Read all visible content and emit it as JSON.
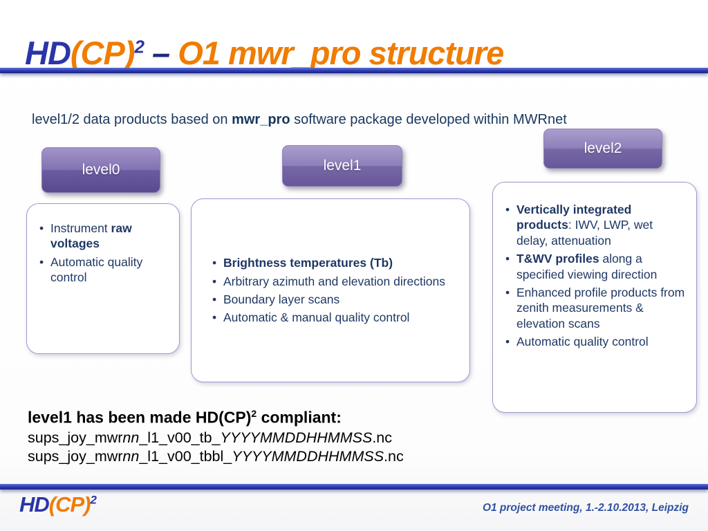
{
  "title": {
    "hd": "HD",
    "cp": "(CP)",
    "sup": "2",
    "dash": " – ",
    "rest": "O1 mwr_pro structure"
  },
  "subtitle": {
    "pre": "level1/2 data products based on ",
    "bold": "mwr_pro",
    "post": " software package developed within MWRnet"
  },
  "levels": {
    "level0": "level0",
    "level1": "level1",
    "level2": "level2"
  },
  "box_level0": {
    "items": [
      {
        "pre": "Instrument ",
        "bold": "raw voltages"
      },
      {
        "text": "Automatic quality control"
      }
    ]
  },
  "box_level1": {
    "items": [
      {
        "bold": "Brightness temperatures (Tb)"
      },
      {
        "text": "Arbitrary azimuth and elevation directions"
      },
      {
        "text": "Boundary layer scans"
      },
      {
        "text": "Automatic & manual quality control"
      }
    ]
  },
  "box_level2": {
    "items": [
      {
        "bold": "Vertically integrated products",
        "post": ": IWV, LWP, wet delay, attenuation"
      },
      {
        "bold": "T&WV profiles",
        "post": " along a specified viewing direction"
      },
      {
        "text": "Enhanced profile products from zenith measurements & elevation scans"
      },
      {
        "text": "Automatic quality control"
      }
    ]
  },
  "compliance": {
    "heading_pre": "level1 has been made HD(CP)",
    "heading_sup": "2",
    "heading_post": " compliant:",
    "file1": {
      "p1": "sups_joy_mwr",
      "i1": "nn",
      "p2": "_l1_v00_tb_",
      "i2": "YYYYMMDDHHMMSS",
      "p3": ".nc"
    },
    "file2": {
      "p1": "sups_joy_mwr",
      "i1": "nn",
      "p2": "_l1_v00_tbbl_",
      "i2": "YYYYMMDDHHMMSS",
      "p3": ".nc"
    }
  },
  "footer": {
    "logo": {
      "hd": "HD",
      "cp": "(CP)",
      "sup": "2"
    },
    "meeting": "O1 project meeting, 1.-2.10.2013, Leipzig"
  },
  "colors": {
    "brand_blue": "#2b35a8",
    "brand_orange": "#f07c00",
    "body_navy": "#1f3864",
    "header_purple": "#68589a"
  }
}
